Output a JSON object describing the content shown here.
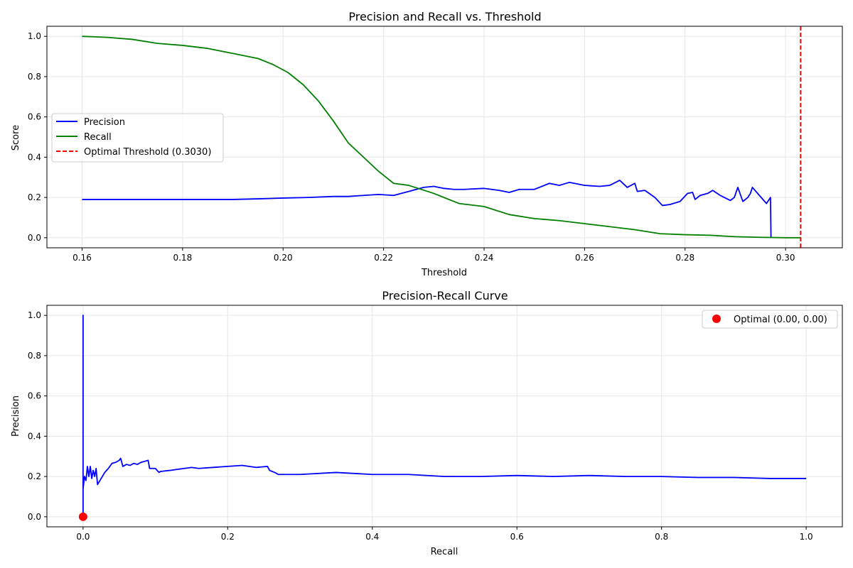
{
  "chart_data": [
    {
      "type": "line",
      "title": "Precision and Recall vs. Threshold",
      "xlabel": "Threshold",
      "ylabel": "Score",
      "xlim": [
        0.153,
        0.3113
      ],
      "ylim": [
        -0.05,
        1.05
      ],
      "xticks": [
        0.16,
        0.18,
        0.2,
        0.22,
        0.24,
        0.26,
        0.28,
        0.3
      ],
      "xtick_labels": [
        "0.16",
        "0.18",
        "0.20",
        "0.22",
        "0.24",
        "0.26",
        "0.28",
        "0.30"
      ],
      "yticks": [
        0.0,
        0.2,
        0.4,
        0.6,
        0.8,
        1.0
      ],
      "ytick_labels": [
        "0.0",
        "0.2",
        "0.4",
        "0.6",
        "0.8",
        "1.0"
      ],
      "grid": true,
      "legend_position": "center-left",
      "series": [
        {
          "name": "Precision",
          "color": "#0000ff",
          "style": "solid",
          "x": [
            0.16,
            0.17,
            0.18,
            0.19,
            0.195,
            0.2,
            0.205,
            0.21,
            0.213,
            0.216,
            0.219,
            0.222,
            0.225,
            0.228,
            0.23,
            0.232,
            0.234,
            0.236,
            0.24,
            0.243,
            0.245,
            0.247,
            0.25,
            0.253,
            0.255,
            0.257,
            0.26,
            0.263,
            0.265,
            0.267,
            0.2685,
            0.27,
            0.2705,
            0.272,
            0.274,
            0.2755,
            0.277,
            0.279,
            0.2805,
            0.2815,
            0.282,
            0.283,
            0.2845,
            0.2855,
            0.287,
            0.289,
            0.2898,
            0.2905,
            0.2915,
            0.2925,
            0.293,
            0.2934,
            0.2962,
            0.297,
            0.2971
          ],
          "y": [
            0.19,
            0.19,
            0.19,
            0.19,
            0.193,
            0.197,
            0.2,
            0.205,
            0.205,
            0.21,
            0.215,
            0.21,
            0.23,
            0.25,
            0.255,
            0.245,
            0.24,
            0.24,
            0.245,
            0.235,
            0.225,
            0.24,
            0.24,
            0.27,
            0.26,
            0.275,
            0.26,
            0.255,
            0.26,
            0.285,
            0.25,
            0.27,
            0.23,
            0.235,
            0.2,
            0.16,
            0.165,
            0.18,
            0.22,
            0.225,
            0.19,
            0.21,
            0.22,
            0.235,
            0.21,
            0.185,
            0.2,
            0.25,
            0.18,
            0.2,
            0.22,
            0.25,
            0.17,
            0.2,
            0.0
          ]
        },
        {
          "name": "Recall",
          "color": "#008000",
          "style": "solid",
          "x": [
            0.16,
            0.165,
            0.17,
            0.175,
            0.18,
            0.185,
            0.19,
            0.195,
            0.198,
            0.201,
            0.204,
            0.207,
            0.21,
            0.213,
            0.216,
            0.219,
            0.222,
            0.225,
            0.23,
            0.235,
            0.24,
            0.245,
            0.25,
            0.255,
            0.26,
            0.265,
            0.27,
            0.275,
            0.28,
            0.285,
            0.29,
            0.295,
            0.3,
            0.303
          ],
          "y": [
            1.0,
            0.995,
            0.985,
            0.965,
            0.955,
            0.94,
            0.915,
            0.89,
            0.86,
            0.82,
            0.76,
            0.68,
            0.58,
            0.47,
            0.4,
            0.33,
            0.27,
            0.26,
            0.22,
            0.17,
            0.155,
            0.115,
            0.095,
            0.085,
            0.07,
            0.055,
            0.04,
            0.02,
            0.015,
            0.012,
            0.005,
            0.002,
            0.0,
            0.0
          ]
        },
        {
          "name": "Optimal Threshold (0.3030)",
          "color": "#ff0000",
          "style": "dashed",
          "vline_x": 0.303
        }
      ]
    },
    {
      "type": "line",
      "title": "Precision-Recall Curve",
      "xlabel": "Recall",
      "ylabel": "Precision",
      "xlim": [
        -0.05,
        1.05
      ],
      "ylim": [
        -0.05,
        1.05
      ],
      "xticks": [
        0.0,
        0.2,
        0.4,
        0.6,
        0.8,
        1.0
      ],
      "xtick_labels": [
        "0.0",
        "0.2",
        "0.4",
        "0.6",
        "0.8",
        "1.0"
      ],
      "yticks": [
        0.0,
        0.2,
        0.4,
        0.6,
        0.8,
        1.0
      ],
      "ytick_labels": [
        "0.0",
        "0.2",
        "0.4",
        "0.6",
        "0.8",
        "1.0"
      ],
      "grid": true,
      "legend_position": "top-right",
      "series": [
        {
          "name": "",
          "color": "#0000ff",
          "style": "solid",
          "x": [
            0.0,
            0.0,
            0.0,
            0.002,
            0.004,
            0.006,
            0.008,
            0.01,
            0.012,
            0.014,
            0.016,
            0.018,
            0.02,
            0.025,
            0.03,
            0.035,
            0.04,
            0.045,
            0.05,
            0.052,
            0.055,
            0.06,
            0.065,
            0.07,
            0.075,
            0.08,
            0.085,
            0.09,
            0.092,
            0.1,
            0.105,
            0.107,
            0.12,
            0.13,
            0.15,
            0.16,
            0.18,
            0.2,
            0.22,
            0.24,
            0.255,
            0.258,
            0.265,
            0.27,
            0.3,
            0.35,
            0.4,
            0.45,
            0.5,
            0.55,
            0.6,
            0.65,
            0.7,
            0.75,
            0.8,
            0.85,
            0.9,
            0.95,
            1.0
          ],
          "y": [
            0.0,
            1.0,
            0.14,
            0.2,
            0.18,
            0.25,
            0.2,
            0.25,
            0.19,
            0.23,
            0.2,
            0.24,
            0.16,
            0.19,
            0.22,
            0.24,
            0.265,
            0.27,
            0.28,
            0.29,
            0.25,
            0.26,
            0.255,
            0.265,
            0.26,
            0.27,
            0.275,
            0.28,
            0.24,
            0.24,
            0.22,
            0.225,
            0.23,
            0.235,
            0.245,
            0.24,
            0.245,
            0.25,
            0.255,
            0.245,
            0.25,
            0.23,
            0.22,
            0.21,
            0.21,
            0.22,
            0.21,
            0.21,
            0.2,
            0.2,
            0.205,
            0.2,
            0.205,
            0.2,
            0.2,
            0.195,
            0.195,
            0.19,
            0.19
          ]
        },
        {
          "name": "Optimal (0.00, 0.00)",
          "color": "#ff0000",
          "style": "marker",
          "point": [
            0.0,
            0.0
          ]
        }
      ]
    }
  ]
}
